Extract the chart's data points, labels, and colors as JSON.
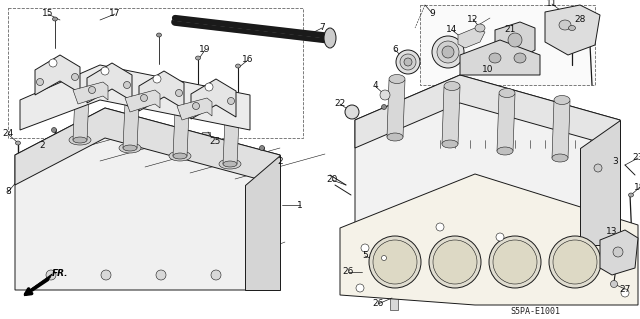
{
  "bg_color": "#ffffff",
  "fig_width": 6.4,
  "fig_height": 3.19,
  "dpi": 100,
  "diagram_code": "S5PA-E1001",
  "line_color": "#1a1a1a",
  "label_color": "#111111",
  "label_fs": 5.5
}
